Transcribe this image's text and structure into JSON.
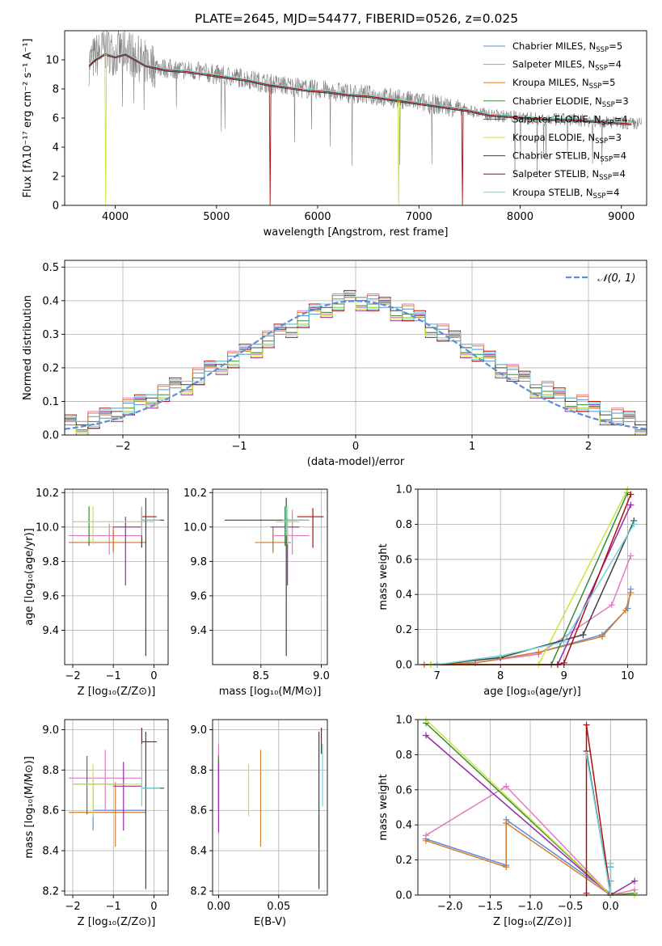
{
  "page_title": "PLATE=2645, MJD=54477, FIBERID=0526, z=0.025",
  "colors": {
    "Chabrier MILES": "#5b8ddb",
    "Salpeter MILES": "#e07cbe",
    "Kroupa MILES": "#d47f2b",
    "Chabrier ELODIE": "#3a8a3a",
    "Salpeter ELODIE": "#9a2aaa",
    "Kroupa ELODIE": "#c8e63a",
    "Chabrier STELIB": "#404040",
    "Salpeter STELIB": "#b00f0f",
    "Kroupa STELIB": "#6fd3d9"
  },
  "chart_data": [
    {
      "id": "spectrum",
      "type": "line",
      "xlabel": "wavelength [Angstrom, rest frame]",
      "ylabel": "Flux [fλ10⁻¹⁷ erg cm⁻² s⁻¹ A⁻¹]",
      "xlim": [
        3500,
        9250
      ],
      "ylim": [
        0,
        12
      ],
      "xticks": [
        "4000",
        "5000",
        "6000",
        "7000",
        "8000",
        "9000"
      ],
      "yticks": [
        "0",
        "2",
        "4",
        "6",
        "8",
        "10"
      ],
      "data_line": {
        "name": "",
        "color": "#808080",
        "x": [
          3740,
          3800,
          3900,
          4000,
          4100,
          4200,
          4300,
          4500,
          4700,
          4900,
          5100,
          5300,
          5500,
          5700,
          5900,
          6100,
          6300,
          6500,
          6700,
          6900,
          7100,
          7300,
          7500,
          7700,
          7900,
          8100,
          8300,
          8500,
          8700,
          8900,
          9100
        ],
        "y": [
          9.8,
          10.2,
          10.8,
          10.4,
          10.8,
          10.2,
          9.8,
          9.4,
          9.3,
          9.1,
          8.9,
          8.7,
          8.4,
          8.2,
          8.0,
          7.9,
          7.7,
          7.6,
          7.4,
          7.2,
          7.0,
          6.8,
          6.5,
          6.2,
          6.1,
          6.0,
          5.9,
          5.9,
          5.8,
          5.7,
          5.6
        ]
      },
      "series": [
        {
          "name": "Chabrier MILES",
          "nssp": "5"
        },
        {
          "name": "Salpeter MILES",
          "nssp": "4"
        },
        {
          "name": "Kroupa MILES",
          "nssp": "5"
        },
        {
          "name": "Chabrier ELODIE",
          "nssp": "3"
        },
        {
          "name": "Salpeter ELODIE",
          "nssp": "4"
        },
        {
          "name": "Kroupa ELODIE",
          "nssp": "3"
        },
        {
          "name": "Chabrier STELIB",
          "nssp": "4"
        },
        {
          "name": "Salpeter STELIB",
          "nssp": "4"
        },
        {
          "name": "Kroupa STELIB",
          "nssp": "4"
        }
      ],
      "model_x": [
        3740,
        3800,
        3900,
        4000,
        4100,
        4200,
        4300,
        4500,
        4700,
        4900,
        5100,
        5300,
        5500,
        5700,
        5900,
        6100,
        6300,
        6500,
        6700,
        6900,
        7100,
        7300,
        7500,
        7700,
        7900,
        8100,
        8300,
        8500,
        8700,
        8900,
        9100
      ],
      "model_y": [
        9.6,
        10.0,
        10.4,
        10.2,
        10.4,
        10.0,
        9.6,
        9.3,
        9.2,
        9.0,
        8.8,
        8.6,
        8.3,
        8.1,
        7.9,
        7.8,
        7.6,
        7.5,
        7.3,
        7.1,
        6.9,
        6.7,
        6.5,
        6.2,
        6.1,
        6.0,
        5.9,
        5.9,
        5.8,
        5.7,
        5.6
      ]
    },
    {
      "id": "residuals",
      "type": "line",
      "xlabel": "(data-model)/error",
      "ylabel": "Normed distribution",
      "xlim": [
        -2.5,
        2.5
      ],
      "ylim": [
        0,
        0.52
      ],
      "xticks": [
        "−2",
        "−1",
        "0",
        "1",
        "2"
      ],
      "yticks": [
        "0.0",
        "0.1",
        "0.2",
        "0.3",
        "0.4",
        "0.5"
      ],
      "legend": "𝒩(0, 1)",
      "gaussian": {
        "mean": 0,
        "sigma": 1,
        "color": "#5b8ddb"
      },
      "hist_bins": [
        -2.5,
        -2.4,
        -2.3,
        -2.2,
        -2.1,
        -2.0,
        -1.9,
        -1.8,
        -1.7,
        -1.6,
        -1.5,
        -1.4,
        -1.3,
        -1.2,
        -1.1,
        -1.0,
        -0.9,
        -0.8,
        -0.7,
        -0.6,
        -0.5,
        -0.4,
        -0.3,
        -0.2,
        -0.1,
        0.0,
        0.1,
        0.2,
        0.3,
        0.4,
        0.5,
        0.6,
        0.7,
        0.8,
        0.9,
        1.0,
        1.1,
        1.2,
        1.3,
        1.4,
        1.5,
        1.6,
        1.7,
        1.8,
        1.9,
        2.0,
        2.1,
        2.2,
        2.3,
        2.4,
        2.5
      ],
      "hist_values": [
        0.03,
        0.03,
        0.04,
        0.05,
        0.07,
        0.08,
        0.09,
        0.11,
        0.12,
        0.14,
        0.15,
        0.17,
        0.19,
        0.21,
        0.22,
        0.24,
        0.26,
        0.28,
        0.3,
        0.32,
        0.34,
        0.36,
        0.38,
        0.39,
        0.4,
        0.4,
        0.39,
        0.38,
        0.37,
        0.36,
        0.34,
        0.32,
        0.3,
        0.28,
        0.26,
        0.24,
        0.22,
        0.2,
        0.18,
        0.16,
        0.14,
        0.13,
        0.11,
        0.1,
        0.09,
        0.07,
        0.06,
        0.05,
        0.04,
        0.03
      ],
      "hist_jitter": [
        0.0,
        0.01,
        -0.01,
        0.02,
        -0.02,
        0.015,
        -0.015,
        0.03,
        -0.025
      ]
    },
    {
      "id": "age_vs_Z",
      "type": "scatter",
      "xlabel": "Z [log₁₀(Z/Z⊙)]",
      "ylabel": "age  [log₁₀(age/yr)]",
      "xlim": [
        -2.2,
        0.35
      ],
      "ylim": [
        9.2,
        10.22
      ],
      "xticks": [
        "−2",
        "−1",
        "0"
      ],
      "yticks": [
        "9.4",
        "9.6",
        "9.8",
        "10.0",
        "10.2"
      ],
      "points": [
        {
          "name": "Chabrier MILES",
          "x": -1.0,
          "xlo": -2.1,
          "xhi": -0.2,
          "y": 9.91,
          "ylo": 9.86,
          "yhi": 9.98
        },
        {
          "name": "Salpeter MILES",
          "x": -1.1,
          "xlo": -2.1,
          "xhi": -0.3,
          "y": 9.95,
          "ylo": 9.84,
          "yhi": 10.02
        },
        {
          "name": "Kroupa MILES",
          "x": -1.0,
          "xlo": -2.1,
          "xhi": -0.2,
          "y": 9.91,
          "ylo": 9.85,
          "yhi": 10.0
        },
        {
          "name": "Chabrier ELODIE",
          "x": -1.6,
          "xlo": -2.0,
          "xhi": 0.0,
          "y": 10.03,
          "ylo": 9.89,
          "yhi": 10.12
        },
        {
          "name": "Salpeter ELODIE",
          "x": -0.7,
          "xlo": -1.0,
          "xhi": -0.3,
          "y": 10.0,
          "ylo": 9.66,
          "yhi": 10.06
        },
        {
          "name": "Kroupa ELODIE",
          "x": -1.5,
          "xlo": -2.0,
          "xhi": 0.0,
          "y": 10.03,
          "ylo": 9.9,
          "yhi": 10.12
        },
        {
          "name": "Chabrier STELIB",
          "x": -0.2,
          "xlo": -0.3,
          "xhi": 0.25,
          "y": 10.04,
          "ylo": 9.25,
          "yhi": 10.17
        },
        {
          "name": "Salpeter STELIB",
          "x": -0.3,
          "xlo": -0.3,
          "xhi": 0.07,
          "y": 10.06,
          "ylo": 9.88,
          "yhi": 10.11
        },
        {
          "name": "Kroupa STELIB",
          "x": -0.3,
          "xlo": -0.3,
          "xhi": 0.15,
          "y": 10.04,
          "ylo": 9.95,
          "yhi": 10.12
        }
      ]
    },
    {
      "id": "age_vs_mass",
      "type": "scatter",
      "xlabel": "mass [log₁₀(M/M⊙)]",
      "ylabel": "",
      "xlim": [
        8.1,
        9.05
      ],
      "ylim": [
        9.2,
        10.22
      ],
      "xticks": [
        "8.5",
        "9.0"
      ],
      "yticks": [
        "9.4",
        "9.6",
        "9.8",
        "10.0",
        "10.2"
      ],
      "points": [
        {
          "name": "Chabrier MILES",
          "x": 8.6,
          "xlo": 8.5,
          "xhi": 8.75,
          "y": 9.91,
          "ylo": 9.85,
          "yhi": 10.0
        },
        {
          "name": "Salpeter MILES",
          "x": 8.76,
          "xlo": 8.6,
          "xhi": 8.9,
          "y": 9.95,
          "ylo": 9.84,
          "yhi": 10.1
        },
        {
          "name": "Kroupa MILES",
          "x": 8.6,
          "xlo": 8.45,
          "xhi": 8.73,
          "y": 9.91,
          "ylo": 9.85,
          "yhi": 10.0
        },
        {
          "name": "Chabrier ELODIE",
          "x": 8.7,
          "xlo": 8.7,
          "xhi": 8.8,
          "y": 10.03,
          "ylo": 9.89,
          "yhi": 10.12
        },
        {
          "name": "Salpeter ELODIE",
          "x": 8.72,
          "xlo": 8.58,
          "xhi": 8.82,
          "y": 10.0,
          "ylo": 9.66,
          "yhi": 10.06
        },
        {
          "name": "Kroupa ELODIE",
          "x": 8.72,
          "xlo": 8.62,
          "xhi": 8.82,
          "y": 10.03,
          "ylo": 9.9,
          "yhi": 10.12
        },
        {
          "name": "Chabrier STELIB",
          "x": 8.71,
          "xlo": 8.2,
          "xhi": 8.9,
          "y": 10.04,
          "ylo": 9.25,
          "yhi": 10.17
        },
        {
          "name": "Salpeter STELIB",
          "x": 8.93,
          "xlo": 8.8,
          "xhi": 9.02,
          "y": 10.06,
          "ylo": 9.88,
          "yhi": 10.11
        },
        {
          "name": "Kroupa STELIB",
          "x": 8.71,
          "xlo": 8.68,
          "xhi": 8.9,
          "y": 10.04,
          "ylo": 9.95,
          "yhi": 10.12
        }
      ]
    },
    {
      "id": "weight_vs_age",
      "type": "line",
      "xlabel": "age  [log₁₀(age/yr)]",
      "ylabel": "mass weight",
      "xlim": [
        6.7,
        10.3
      ],
      "ylim": [
        0,
        1.0
      ],
      "xticks": [
        "7",
        "8",
        "9",
        "10"
      ],
      "yticks": [
        "0.0",
        "0.2",
        "0.4",
        "0.6",
        "0.8",
        "1.0"
      ],
      "series": [
        {
          "name": "Chabrier MILES",
          "x": [
            6.8,
            7.6,
            8.6,
            9.6,
            10.0,
            10.05
          ],
          "y": [
            0.0,
            0.01,
            0.07,
            0.17,
            0.32,
            0.43
          ]
        },
        {
          "name": "Salpeter MILES",
          "x": [
            6.8,
            7.6,
            8.6,
            9.75,
            10.05
          ],
          "y": [
            0.0,
            0.01,
            0.06,
            0.34,
            0.62
          ]
        },
        {
          "name": "Kroupa MILES",
          "x": [
            6.8,
            7.6,
            8.6,
            9.6,
            9.97,
            10.05
          ],
          "y": [
            0.0,
            0.01,
            0.07,
            0.16,
            0.31,
            0.41
          ]
        },
        {
          "name": "Chabrier ELODIE",
          "x": [
            6.9,
            8.8,
            10.0
          ],
          "y": [
            0.0,
            0.0,
            0.98
          ]
        },
        {
          "name": "Salpeter ELODIE",
          "x": [
            6.9,
            8.9,
            10.05
          ],
          "y": [
            0.0,
            0.0,
            0.91
          ]
        },
        {
          "name": "Kroupa ELODIE",
          "x": [
            6.9,
            8.6,
            10.0
          ],
          "y": [
            0.0,
            0.0,
            1.0
          ]
        },
        {
          "name": "Chabrier STELIB",
          "x": [
            7.0,
            8.0,
            9.3,
            10.1
          ],
          "y": [
            0.0,
            0.04,
            0.17,
            0.82
          ]
        },
        {
          "name": "Salpeter STELIB",
          "x": [
            7.0,
            8.9,
            9.0,
            10.05
          ],
          "y": [
            0.0,
            0.0,
            0.01,
            0.97
          ]
        },
        {
          "name": "Kroupa STELIB",
          "x": [
            7.0,
            8.0,
            9.0,
            10.1
          ],
          "y": [
            0.0,
            0.05,
            0.13,
            0.8
          ]
        }
      ]
    },
    {
      "id": "mass_vs_Z",
      "type": "scatter",
      "xlabel": "Z [log₁₀(Z/Z⊙)]",
      "ylabel": "mass [log₁₀(M/M⊙)]",
      "xlim": [
        -2.2,
        0.35
      ],
      "ylim": [
        8.18,
        9.05
      ],
      "xticks": [
        "−2",
        "−1",
        "0"
      ],
      "yticks": [
        "8.2",
        "8.4",
        "8.6",
        "8.8",
        "9.0"
      ],
      "points": [
        {
          "name": "Chabrier MILES",
          "x": -1.5,
          "xlo": -1.5,
          "xhi": -0.2,
          "y": 8.6,
          "ylo": 8.5,
          "yhi": 8.75
        },
        {
          "name": "Salpeter MILES",
          "x": -1.2,
          "xlo": -2.1,
          "xhi": -0.3,
          "y": 8.76,
          "ylo": 8.6,
          "yhi": 8.9
        },
        {
          "name": "Kroupa MILES",
          "x": -0.95,
          "xlo": -2.1,
          "xhi": -0.2,
          "y": 8.59,
          "ylo": 8.42,
          "yhi": 8.74
        },
        {
          "name": "Chabrier ELODIE",
          "x": -1.65,
          "xlo": -2.0,
          "xhi": -0.7,
          "y": 8.73,
          "ylo": 8.58,
          "yhi": 8.87
        },
        {
          "name": "Salpeter ELODIE",
          "x": -0.75,
          "xlo": -1.0,
          "xhi": -0.3,
          "y": 8.72,
          "ylo": 8.5,
          "yhi": 8.84
        },
        {
          "name": "Kroupa ELODIE",
          "x": -1.5,
          "xlo": -2.0,
          "xhi": -0.3,
          "y": 8.73,
          "ylo": 8.57,
          "yhi": 8.83
        },
        {
          "name": "Chabrier STELIB",
          "x": -0.2,
          "xlo": -0.3,
          "xhi": 0.25,
          "y": 8.71,
          "ylo": 8.21,
          "yhi": 8.99
        },
        {
          "name": "Salpeter STELIB",
          "x": -0.3,
          "xlo": -0.3,
          "xhi": 0.07,
          "y": 8.94,
          "ylo": 8.8,
          "yhi": 9.01
        },
        {
          "name": "Kroupa STELIB",
          "x": -0.3,
          "xlo": -0.3,
          "xhi": 0.15,
          "y": 8.71,
          "ylo": 8.62,
          "yhi": 8.93
        }
      ]
    },
    {
      "id": "mass_vs_EBV",
      "type": "scatter",
      "xlabel": "E(B-V)",
      "ylabel": "",
      "xlim": [
        -0.005,
        0.0905
      ],
      "ylim": [
        8.18,
        9.05
      ],
      "xticks": [
        "0.00",
        "0.05"
      ],
      "yticks": [
        "8.2",
        "8.4",
        "8.6",
        "8.8",
        "9.0"
      ],
      "points": [
        {
          "name": "Chabrier MILES",
          "x": 0.0,
          "ylo": 8.61,
          "yhi": 8.88
        },
        {
          "name": "Salpeter MILES",
          "x": 0.0,
          "ylo": 8.76,
          "yhi": 8.93
        },
        {
          "name": "Kroupa MILES",
          "x": 0.035,
          "ylo": 8.42,
          "yhi": 8.9
        },
        {
          "name": "Chabrier ELODIE",
          "x": 0.0,
          "ylo": 8.6,
          "yhi": 8.87
        },
        {
          "name": "Salpeter ELODIE",
          "x": 0.0,
          "ylo": 8.49,
          "yhi": 8.84
        },
        {
          "name": "Kroupa ELODIE",
          "x": 0.025,
          "ylo": 8.57,
          "yhi": 8.83
        },
        {
          "name": "Chabrier STELIB",
          "x": 0.0835,
          "ylo": 8.21,
          "yhi": 8.99
        },
        {
          "name": "Salpeter STELIB",
          "x": 0.0855,
          "ylo": 8.88,
          "yhi": 9.01
        },
        {
          "name": "Kroupa STELIB",
          "x": 0.0865,
          "ylo": 8.62,
          "yhi": 8.93
        }
      ]
    },
    {
      "id": "weight_vs_Z",
      "type": "line",
      "xlabel": "Z [log₁₀(Z/Z⊙)]",
      "ylabel": "mass weight",
      "xlim": [
        -2.4,
        0.45
      ],
      "ylim": [
        0,
        1.0
      ],
      "xticks": [
        "−2.0",
        "−1.5",
        "−1.0",
        "−0.5",
        "0.0"
      ],
      "yticks": [
        "0.0",
        "0.2",
        "0.4",
        "0.6",
        "0.8",
        "1.0"
      ],
      "series": [
        {
          "name": "Chabrier MILES",
          "x": [
            -2.3,
            -1.3,
            -1.3,
            0.0,
            0.0
          ],
          "y": [
            0.32,
            0.17,
            0.43,
            0.01,
            0.16
          ]
        },
        {
          "name": "Salpeter MILES",
          "x": [
            -2.3,
            -1.3,
            0.0,
            0.3
          ],
          "y": [
            0.34,
            0.62,
            0.0,
            0.03
          ]
        },
        {
          "name": "Kroupa MILES",
          "x": [
            -2.3,
            -1.3,
            -1.3,
            0.0,
            0.0
          ],
          "y": [
            0.31,
            0.16,
            0.41,
            0.0,
            0.08
          ]
        },
        {
          "name": "Chabrier ELODIE",
          "x": [
            -2.3,
            0.0,
            0.3
          ],
          "y": [
            0.98,
            0.0,
            0.01
          ]
        },
        {
          "name": "Salpeter ELODIE",
          "x": [
            -2.3,
            0.0,
            0.3
          ],
          "y": [
            0.91,
            0.0,
            0.08
          ]
        },
        {
          "name": "Kroupa ELODIE",
          "x": [
            -2.3,
            0.0,
            0.3
          ],
          "y": [
            1.0,
            0.0,
            0.0
          ]
        },
        {
          "name": "Chabrier STELIB",
          "x": [
            -0.3,
            0.0,
            0.0
          ],
          "y": [
            0.82,
            0.0,
            0.18
          ]
        },
        {
          "name": "Salpeter STELIB",
          "x": [
            -0.3,
            -0.3,
            0.0
          ],
          "y": [
            0.01,
            0.97,
            0.01
          ]
        },
        {
          "name": "Kroupa STELIB",
          "x": [
            -0.3,
            0.0,
            0.0
          ],
          "y": [
            0.8,
            0.0,
            0.18
          ]
        }
      ]
    }
  ]
}
